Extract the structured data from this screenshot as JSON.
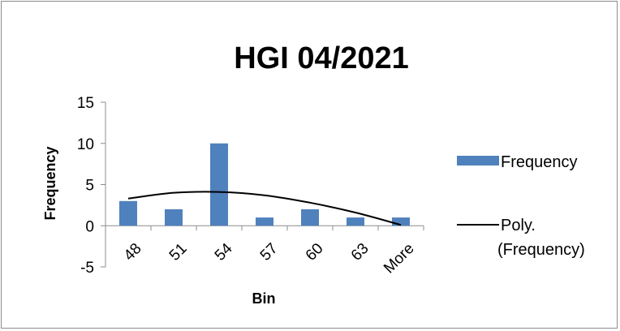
{
  "chart_data": {
    "type": "bar",
    "title": "HGI 04/2021",
    "xlabel": "Bin",
    "ylabel": "Frequency",
    "categories": [
      "48",
      "51",
      "54",
      "57",
      "60",
      "63",
      "More"
    ],
    "series": [
      {
        "name": "Frequency",
        "values": [
          3,
          2,
          10,
          1,
          2,
          1,
          1
        ],
        "color": "#4f81bd"
      }
    ],
    "trendline": {
      "name_line1": "Poly.",
      "name_line2": "(Frequency)",
      "type": "polynomial",
      "values": [
        3.3,
        4.0,
        4.1,
        3.7,
        2.8,
        1.6,
        0.1
      ],
      "color": "#000000"
    },
    "yticks": [
      "15",
      "10",
      "5",
      "0",
      "-5"
    ],
    "ytick_values": [
      15,
      10,
      5,
      0,
      -5
    ],
    "ylim": [
      -5,
      15
    ],
    "grid": false,
    "legend_position": "right"
  }
}
